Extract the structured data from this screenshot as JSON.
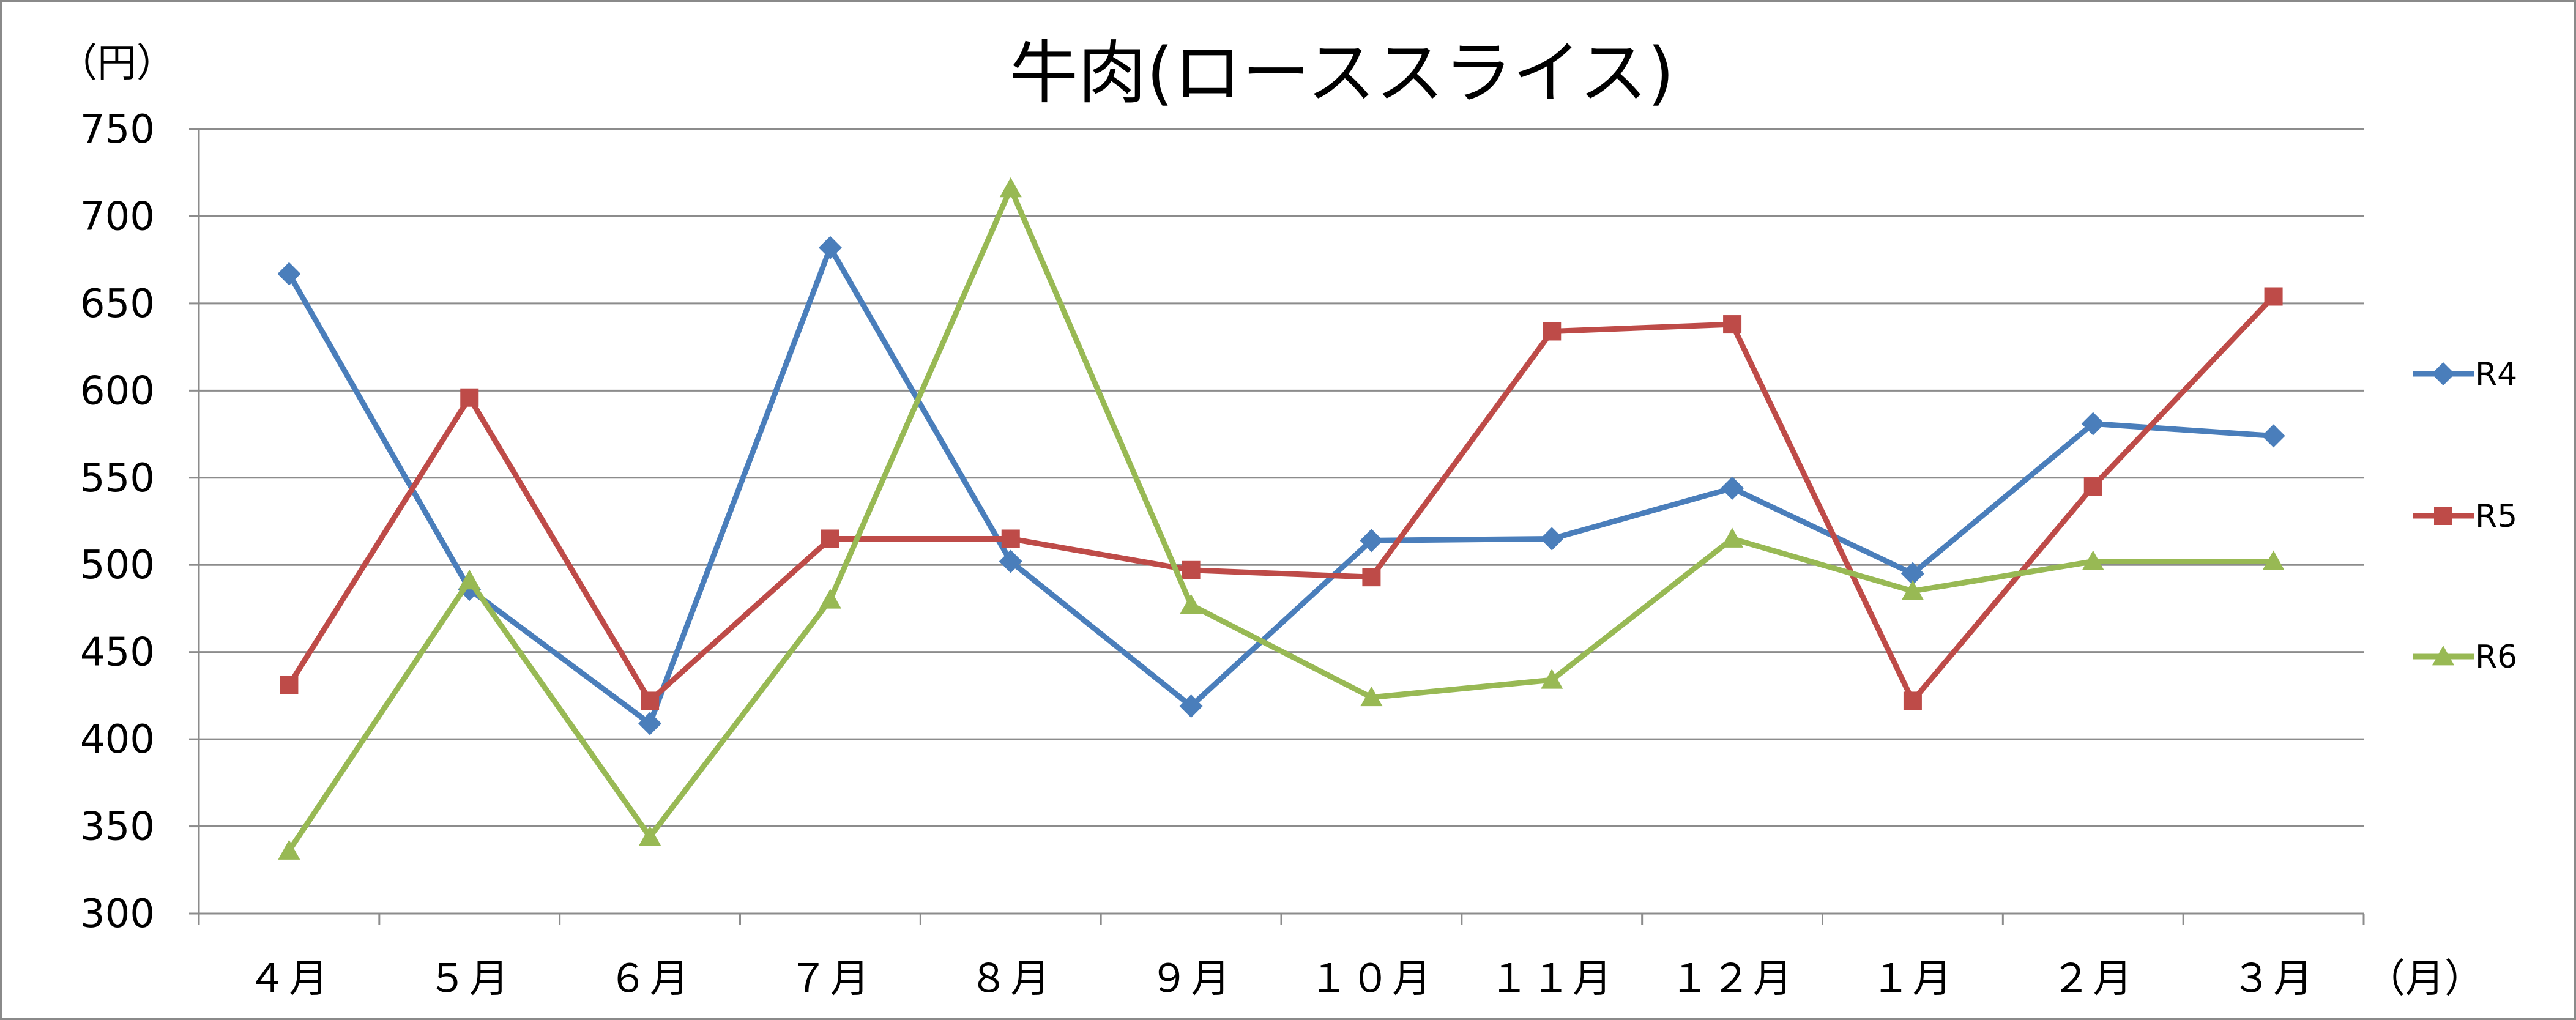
{
  "chart_data": {
    "type": "line",
    "title": "牛肉(ローススライス)",
    "ylabel": "（円）",
    "xlabel": "（月）",
    "ylim": [
      300,
      750
    ],
    "ytick_step": 50,
    "grid": true,
    "legend_position": "right",
    "categories": [
      "４月",
      "５月",
      "６月",
      "７月",
      "８月",
      "９月",
      "１０月",
      "１１月",
      "１２月",
      "１月",
      "２月",
      "３月"
    ],
    "series": [
      {
        "name": "R4",
        "color": "#4a7ebb",
        "marker": "diamond",
        "values": [
          667,
          486,
          409,
          682,
          502,
          419,
          514,
          515,
          544,
          495,
          581,
          574
        ]
      },
      {
        "name": "R5",
        "color": "#be4b48",
        "marker": "square",
        "values": [
          431,
          596,
          422,
          515,
          515,
          497,
          493,
          634,
          638,
          422,
          545,
          654
        ]
      },
      {
        "name": "R6",
        "color": "#98b954",
        "marker": "triangle",
        "values": [
          336,
          491,
          344,
          480,
          716,
          477,
          424,
          434,
          515,
          485,
          502,
          502
        ]
      }
    ]
  }
}
